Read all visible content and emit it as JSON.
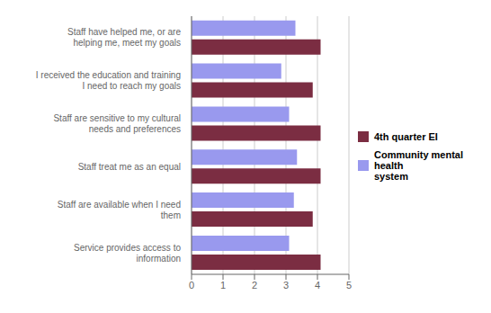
{
  "chart_data": {
    "type": "bar",
    "orientation": "horizontal",
    "categories": [
      "Staff have helped me, or are\nhelping me, meet my goals",
      "I received the education and training\nI need to reach my goals",
      "Staff are sensitive to my cultural\nneeds and preferences",
      "Staff treat me as an equal",
      "Staff are available when I need\nthem",
      "Service provides access to\ninformation"
    ],
    "series": [
      {
        "name": "4th quarter EI",
        "color": "#7B2D42",
        "values": [
          4.1,
          3.85,
          4.1,
          4.1,
          3.85,
          4.1
        ]
      },
      {
        "name": "Community mental health\nsystem",
        "color": "#9999EE",
        "values": [
          3.3,
          2.85,
          3.1,
          3.35,
          3.25,
          3.1
        ]
      }
    ],
    "xlim": [
      0,
      5
    ],
    "xticks": [
      0,
      1,
      2,
      3,
      4,
      5
    ],
    "grid": true,
    "legend": "right"
  }
}
